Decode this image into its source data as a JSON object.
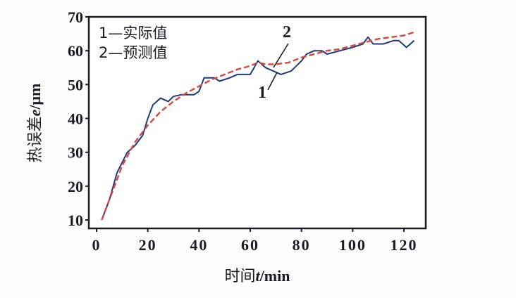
{
  "chart_data": {
    "type": "line",
    "title": "",
    "xlabel": "时间t/min",
    "ylabel": "热误差e/μm",
    "xlim": [
      0,
      125
    ],
    "ylim": [
      10,
      70
    ],
    "x_ticks": [
      0,
      20,
      40,
      60,
      80,
      100,
      120
    ],
    "y_ticks": [
      10,
      20,
      30,
      40,
      50,
      60,
      70
    ],
    "grid": false,
    "legend_position": "top-left",
    "legend": [
      "1—实际值",
      "2—预测值"
    ],
    "annotations": [
      {
        "text": "1",
        "target": "实际值"
      },
      {
        "text": "2",
        "target": "预测值"
      }
    ],
    "series": [
      {
        "name": "1—实际值",
        "style": "solid",
        "color": "#1f3a7a",
        "x": [
          2,
          5,
          8,
          12,
          15,
          18,
          20,
          22,
          25,
          28,
          30,
          33,
          38,
          40,
          42,
          46,
          48,
          52,
          55,
          60,
          63,
          66,
          72,
          76,
          80,
          82,
          85,
          88,
          90,
          95,
          100,
          104,
          106,
          108,
          112,
          116,
          118,
          121,
          124
        ],
        "values": [
          10,
          16,
          24,
          30,
          32,
          35,
          40,
          44,
          46,
          45,
          46.5,
          47,
          47,
          48,
          52,
          52,
          51,
          52,
          53,
          53,
          57,
          55,
          53,
          54,
          57,
          59,
          60,
          60,
          59,
          60,
          61,
          62,
          64,
          62,
          62,
          63,
          63,
          61,
          63
        ]
      },
      {
        "name": "2—预测值",
        "style": "dashed",
        "color": "#d9473f",
        "x": [
          2,
          6,
          10,
          15,
          20,
          25,
          30,
          35,
          40,
          45,
          50,
          55,
          60,
          63,
          66,
          70,
          75,
          80,
          85,
          90,
          95,
          100,
          105,
          110,
          115,
          120,
          124
        ],
        "values": [
          10,
          18,
          26,
          33,
          38,
          42,
          45,
          47.5,
          49.5,
          51.5,
          53,
          54.5,
          55.5,
          56.5,
          56,
          56,
          56.5,
          58,
          59,
          60,
          60.5,
          61.5,
          62.5,
          63.5,
          64,
          64.5,
          65.5
        ]
      }
    ]
  },
  "labels": {
    "xlabel_cn": "时间",
    "xlabel_var": "t",
    "xlabel_unit": "/min",
    "ylabel_cn": "热误差",
    "ylabel_var": "e",
    "ylabel_unit": "/μm",
    "legend_1": "1—实际值",
    "legend_2": "2—预测值",
    "anno_1": "1",
    "anno_2": "2"
  }
}
